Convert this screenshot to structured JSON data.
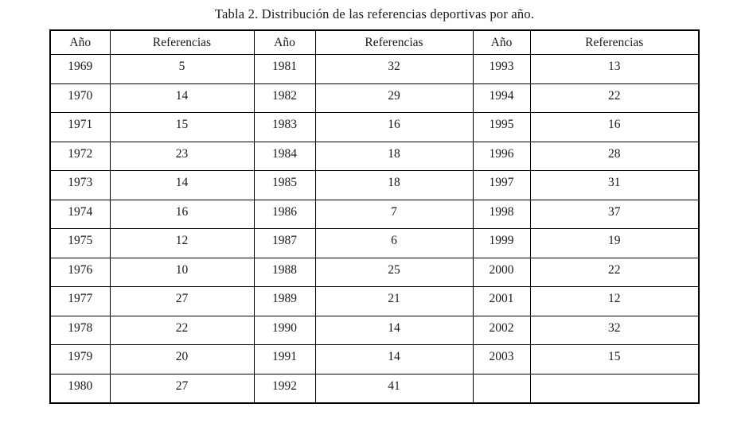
{
  "title": "Tabla 2. Distribución de las referencias deportivas por año.",
  "table": {
    "headers": [
      "Año",
      "Referencias",
      "Año",
      "Referencias",
      "Año",
      "Referencias"
    ],
    "rows": [
      [
        "1969",
        "5",
        "1981",
        "32",
        "1993",
        "13"
      ],
      [
        "1970",
        "14",
        "1982",
        "29",
        "1994",
        "22"
      ],
      [
        "1971",
        "15",
        "1983",
        "16",
        "1995",
        "16"
      ],
      [
        "1972",
        "23",
        "1984",
        "18",
        "1996",
        "28"
      ],
      [
        "1973",
        "14",
        "1985",
        "18",
        "1997",
        "31"
      ],
      [
        "1974",
        "16",
        "1986",
        "7",
        "1998",
        "37"
      ],
      [
        "1975",
        "12",
        "1987",
        "6",
        "1999",
        "19"
      ],
      [
        "1976",
        "10",
        "1988",
        "25",
        "2000",
        "22"
      ],
      [
        "1977",
        "27",
        "1989",
        "21",
        "2001",
        "12"
      ],
      [
        "1978",
        "22",
        "1990",
        "14",
        "2002",
        "32"
      ],
      [
        "1979",
        "20",
        "1991",
        "14",
        "2003",
        "15"
      ],
      [
        "1980",
        "27",
        "1992",
        "41",
        "",
        ""
      ]
    ]
  },
  "chart_data": {
    "type": "table",
    "title": "Tabla 2. Distribución de las referencias deportivas por año.",
    "columns": [
      "Año",
      "Referencias"
    ],
    "x": [
      1969,
      1970,
      1971,
      1972,
      1973,
      1974,
      1975,
      1976,
      1977,
      1978,
      1979,
      1980,
      1981,
      1982,
      1983,
      1984,
      1985,
      1986,
      1987,
      1988,
      1989,
      1990,
      1991,
      1992,
      1993,
      1994,
      1995,
      1996,
      1997,
      1998,
      1999,
      2000,
      2001,
      2002,
      2003
    ],
    "values": [
      5,
      14,
      15,
      23,
      14,
      16,
      12,
      10,
      27,
      22,
      20,
      27,
      32,
      29,
      16,
      18,
      18,
      7,
      6,
      25,
      21,
      14,
      14,
      41,
      13,
      22,
      16,
      28,
      31,
      37,
      19,
      22,
      12,
      32,
      15
    ]
  }
}
